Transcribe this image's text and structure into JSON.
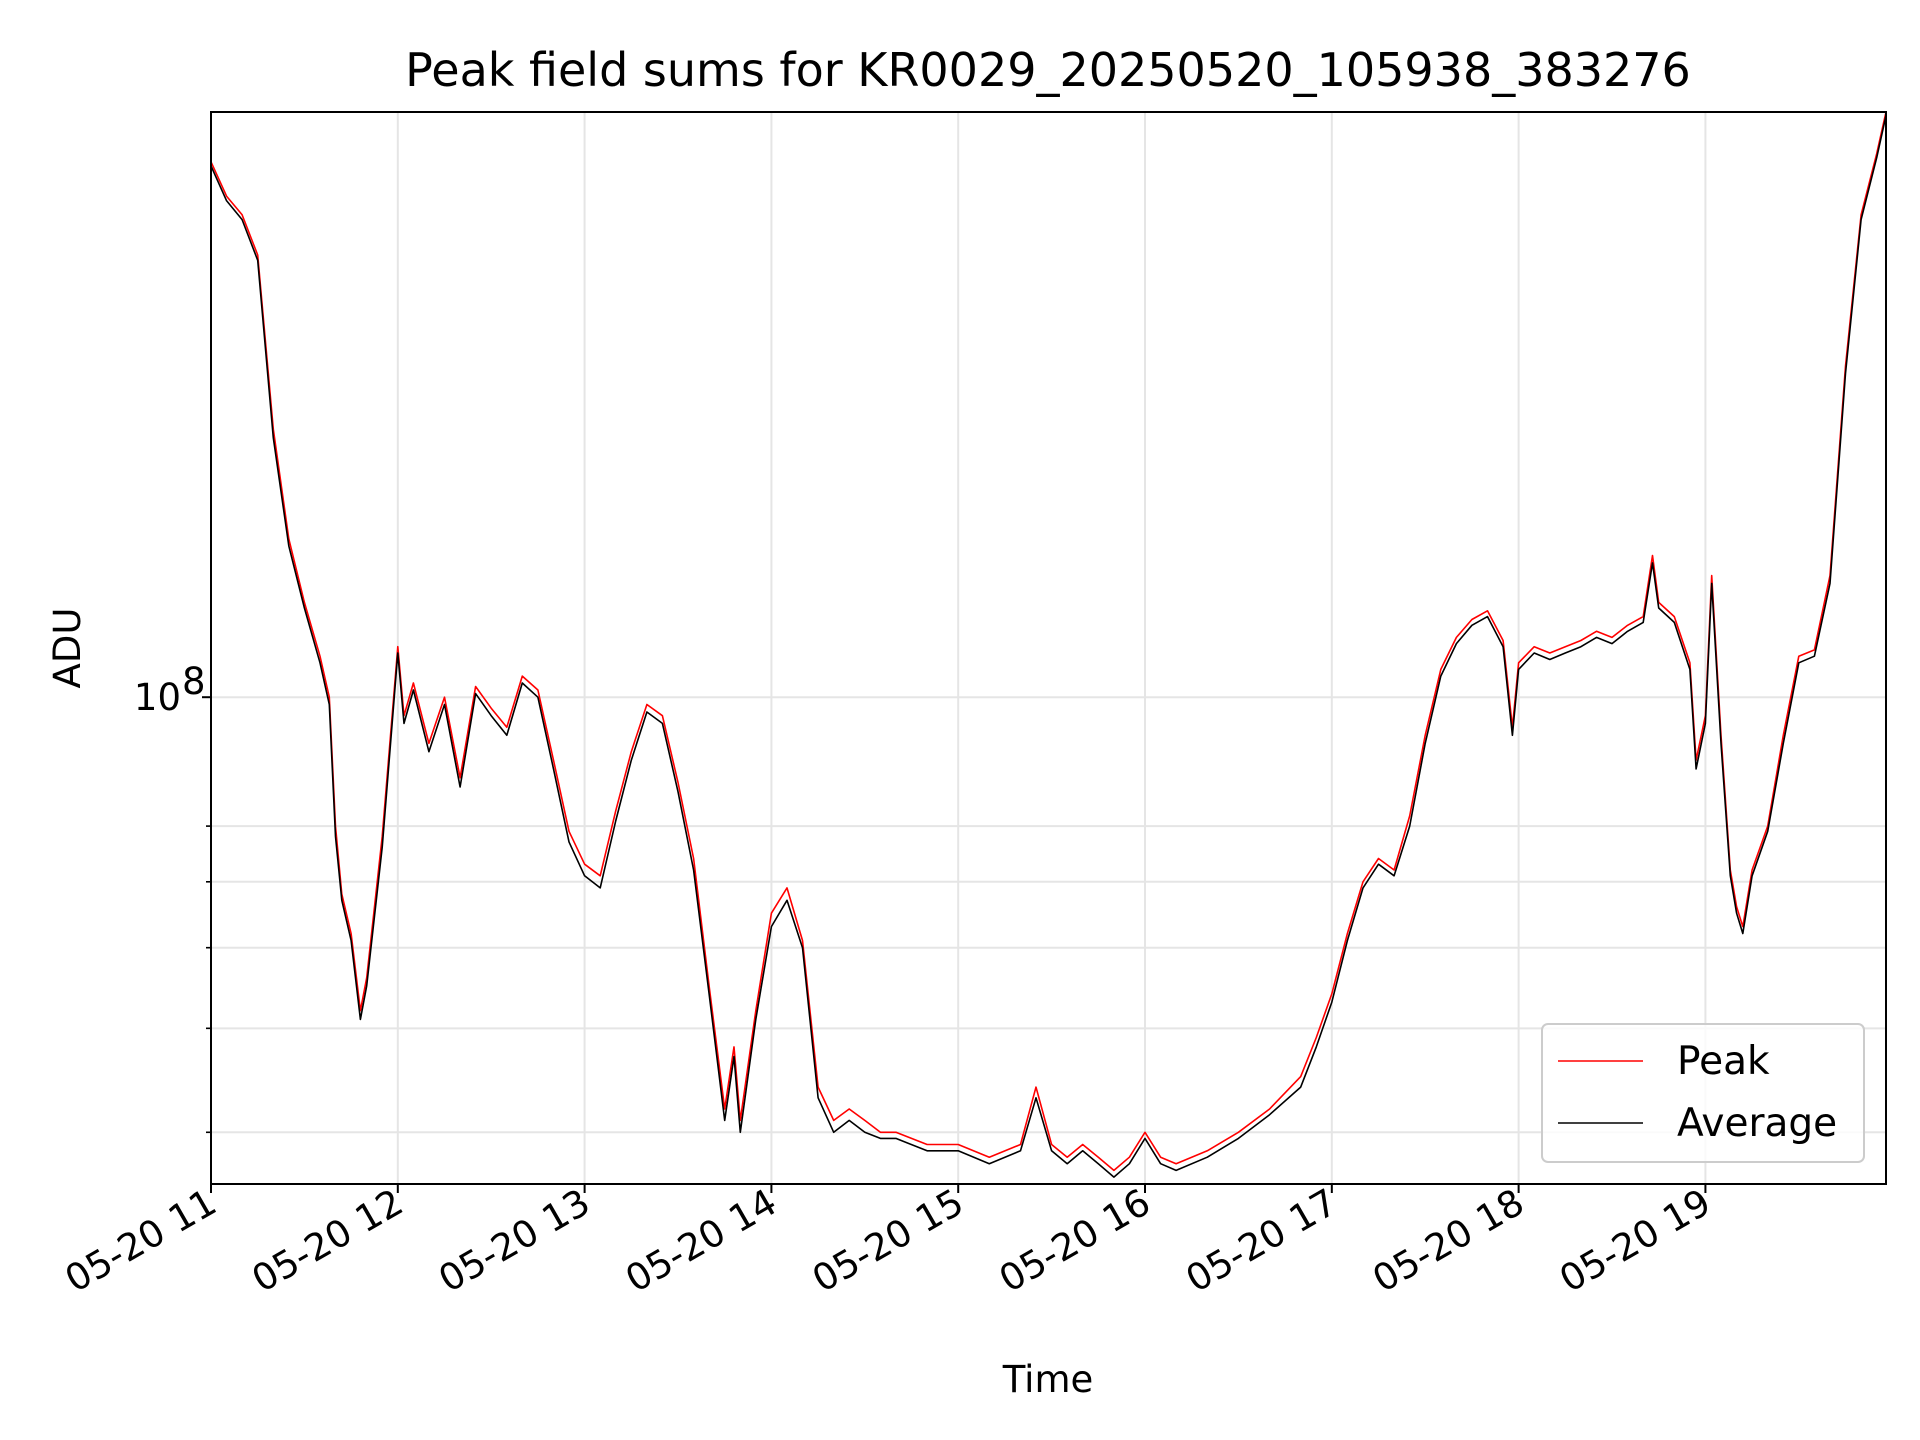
{
  "chart_data": {
    "type": "line",
    "title": "Peak field sums for KR0029_20250520_105938_383276",
    "xlabel": "Time",
    "ylabel": "ADU",
    "x_type": "datetime",
    "xlim": [
      "05-20 11:00",
      "05-20 19:58"
    ],
    "ylim": [
      26000000,
      505000000
    ],
    "yscale": "log",
    "grid": true,
    "legend_position": "lower right",
    "x_ticks": [
      "05-20 11",
      "05-20 12",
      "05-20 13",
      "05-20 14",
      "05-20 15",
      "05-20 16",
      "05-20 17",
      "05-20 18",
      "05-20 19"
    ],
    "y_ticks": [
      {
        "value": 100000000,
        "label": "10",
        "exponent": "8"
      }
    ],
    "y_minor_ticks": [
      30000000,
      40000000,
      50000000,
      60000000,
      70000000
    ],
    "series": [
      {
        "name": "Peak",
        "color": "#ff0000"
      },
      {
        "name": "Average",
        "color": "#000000"
      }
    ],
    "x": [
      "05-20 11:00",
      "05-20 11:05",
      "05-20 11:10",
      "05-20 11:15",
      "05-20 11:20",
      "05-20 11:25",
      "05-20 11:30",
      "05-20 11:35",
      "05-20 11:38",
      "05-20 11:40",
      "05-20 11:42",
      "05-20 11:45",
      "05-20 11:48",
      "05-20 11:50",
      "05-20 11:55",
      "05-20 12:00",
      "05-20 12:02",
      "05-20 12:05",
      "05-20 12:10",
      "05-20 12:15",
      "05-20 12:20",
      "05-20 12:25",
      "05-20 12:30",
      "05-20 12:35",
      "05-20 12:40",
      "05-20 12:45",
      "05-20 12:50",
      "05-20 12:55",
      "05-20 13:00",
      "05-20 13:05",
      "05-20 13:10",
      "05-20 13:15",
      "05-20 13:20",
      "05-20 13:25",
      "05-20 13:30",
      "05-20 13:35",
      "05-20 13:40",
      "05-20 13:45",
      "05-20 13:48",
      "05-20 13:50",
      "05-20 13:55",
      "05-20 14:00",
      "05-20 14:05",
      "05-20 14:10",
      "05-20 14:15",
      "05-20 14:20",
      "05-20 14:25",
      "05-20 14:30",
      "05-20 14:35",
      "05-20 14:40",
      "05-20 14:50",
      "05-20 15:00",
      "05-20 15:10",
      "05-20 15:20",
      "05-20 15:25",
      "05-20 15:30",
      "05-20 15:35",
      "05-20 15:40",
      "05-20 15:45",
      "05-20 15:50",
      "05-20 15:55",
      "05-20 16:00",
      "05-20 16:05",
      "05-20 16:10",
      "05-20 16:20",
      "05-20 16:30",
      "05-20 16:40",
      "05-20 16:50",
      "05-20 16:55",
      "05-20 17:00",
      "05-20 17:05",
      "05-20 17:10",
      "05-20 17:15",
      "05-20 17:20",
      "05-20 17:25",
      "05-20 17:30",
      "05-20 17:35",
      "05-20 17:40",
      "05-20 17:45",
      "05-20 17:50",
      "05-20 17:55",
      "05-20 17:58",
      "05-20 18:00",
      "05-20 18:05",
      "05-20 18:10",
      "05-20 18:15",
      "05-20 18:20",
      "05-20 18:25",
      "05-20 18:30",
      "05-20 18:35",
      "05-20 18:40",
      "05-20 18:43",
      "05-20 18:45",
      "05-20 18:50",
      "05-20 18:55",
      "05-20 18:57",
      "05-20 19:00",
      "05-20 19:02",
      "05-20 19:05",
      "05-20 19:08",
      "05-20 19:10",
      "05-20 19:12",
      "05-20 19:15",
      "05-20 19:20",
      "05-20 19:25",
      "05-20 19:30",
      "05-20 19:35",
      "05-20 19:40",
      "05-20 19:45",
      "05-20 19:50",
      "05-20 19:55",
      "05-20 19:58"
    ],
    "peak": [
      440000000,
      400000000,
      380000000,
      340000000,
      210000000,
      155000000,
      130000000,
      112000000,
      100000000,
      70000000,
      58000000,
      52000000,
      42000000,
      46000000,
      68000000,
      115000000,
      95000000,
      104000000,
      88000000,
      100000000,
      80000000,
      103000000,
      97000000,
      92000000,
      106000000,
      102000000,
      84000000,
      69000000,
      63000000,
      61000000,
      73000000,
      86000000,
      98000000,
      95000000,
      79000000,
      64000000,
      45000000,
      32000000,
      38000000,
      31000000,
      42000000,
      55000000,
      59000000,
      51000000,
      34000000,
      31000000,
      32000000,
      31000000,
      30000000,
      30000000,
      29000000,
      29000000,
      28000000,
      29000000,
      34000000,
      29000000,
      28000000,
      29000000,
      28000000,
      27000000,
      28000000,
      30000000,
      28000000,
      27500000,
      28500000,
      30000000,
      32000000,
      35000000,
      39000000,
      44000000,
      52000000,
      60000000,
      64000000,
      62000000,
      72000000,
      90000000,
      108000000,
      118000000,
      124000000,
      127000000,
      117000000,
      92000000,
      110000000,
      115000000,
      113000000,
      115000000,
      117000000,
      120000000,
      118000000,
      122000000,
      125000000,
      148000000,
      130000000,
      125000000,
      110000000,
      84000000,
      95000000,
      140000000,
      90000000,
      62000000,
      56000000,
      53000000,
      62000000,
      70000000,
      90000000,
      112000000,
      114000000,
      140000000,
      250000000,
      380000000,
      450000000,
      505000000
    ],
    "average": [
      435000000,
      395000000,
      375000000,
      335000000,
      205000000,
      152000000,
      128000000,
      110000000,
      98000000,
      68000000,
      57000000,
      51000000,
      41000000,
      45000000,
      66000000,
      113000000,
      93000000,
      102000000,
      86000000,
      98000000,
      78000000,
      101000000,
      95000000,
      90000000,
      104000000,
      100000000,
      82000000,
      67000000,
      61000000,
      59000000,
      71000000,
      84000000,
      96000000,
      93000000,
      77000000,
      62000000,
      44000000,
      31000000,
      37000000,
      30000000,
      41000000,
      53000000,
      57000000,
      50000000,
      33000000,
      30000000,
      31000000,
      30000000,
      29500000,
      29500000,
      28500000,
      28500000,
      27500000,
      28500000,
      33000000,
      28500000,
      27500000,
      28500000,
      27500000,
      26500000,
      27500000,
      29500000,
      27500000,
      27000000,
      28000000,
      29500000,
      31500000,
      34000000,
      38000000,
      43000000,
      51000000,
      59000000,
      63000000,
      61000000,
      70000000,
      88000000,
      106000000,
      116000000,
      122000000,
      125000000,
      115000000,
      90000000,
      108000000,
      113000000,
      111000000,
      113000000,
      115000000,
      118000000,
      116000000,
      120000000,
      123000000,
      145000000,
      128000000,
      123000000,
      108000000,
      82000000,
      93000000,
      137000000,
      88000000,
      61000000,
      55000000,
      52000000,
      61000000,
      69000000,
      88000000,
      110000000,
      112000000,
      137000000,
      245000000,
      375000000,
      445000000,
      500000000
    ]
  }
}
